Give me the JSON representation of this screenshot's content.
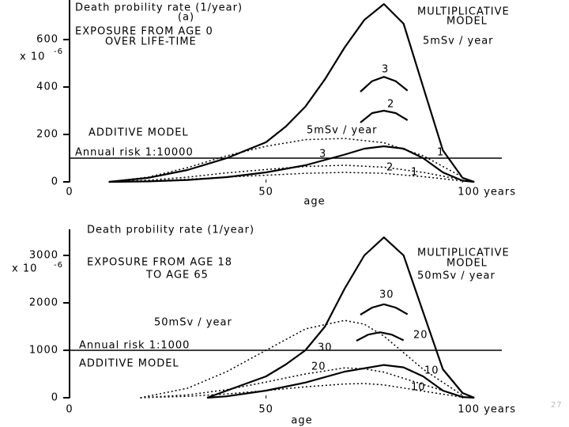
{
  "chart_data": [
    {
      "type": "line",
      "title": "Death probility rate (1/year)",
      "panel": "(a)",
      "y_unit": "x 10",
      "y_unit_exp": "-6",
      "x_label": "age",
      "xlim": [
        0,
        110
      ],
      "xticks": [
        0,
        50,
        {
          "value": 100,
          "label": "100 years"
        }
      ],
      "ylim": [
        0,
        767
      ],
      "yticks": [
        0,
        200,
        400,
        600
      ],
      "annotations": [
        "EXPOSURE FROM AGE 0",
        "OVER LIFE-TIME",
        "MULTIPLICATIVE",
        "MODEL",
        "5mSv / year",
        "ADDITIVE MODEL",
        "5mSv / year"
      ],
      "reference_lines": [
        {
          "value": 100,
          "label": "Annual risk 1:10000"
        }
      ],
      "series": [
        {
          "color": "#000000",
          "style": "solid",
          "x": [
            10,
            20,
            30,
            40,
            50,
            55,
            60,
            65,
            70,
            75,
            80,
            85,
            90,
            95,
            100,
            103
          ],
          "values": [
            0,
            17,
            50,
            100,
            167,
            233,
            317,
            433,
            567,
            683,
            750,
            667,
            400,
            133,
            17,
            0
          ]
        },
        {
          "name": "3",
          "color": "#000000",
          "style": "solid",
          "x": [
            74,
            77,
            80,
            83,
            86
          ],
          "values": [
            380,
            425,
            443,
            425,
            385
          ]
        },
        {
          "name": "2",
          "color": "#000000",
          "style": "solid",
          "x": [
            74,
            77,
            80,
            83,
            86
          ],
          "values": [
            250,
            290,
            300,
            290,
            260
          ]
        },
        {
          "name": "1",
          "color": "#000000",
          "style": "solid",
          "x": [
            10,
            20,
            30,
            40,
            50,
            60,
            70,
            75,
            80,
            85,
            90,
            95,
            100,
            103
          ],
          "values": [
            0,
            2,
            8,
            20,
            40,
            70,
            115,
            140,
            150,
            140,
            100,
            40,
            5,
            0
          ]
        },
        {
          "name": "3",
          "color": "#000000",
          "style": "dashed",
          "x": [
            10,
            20,
            30,
            40,
            50,
            60,
            70,
            80,
            90,
            100
          ],
          "values": [
            0,
            20,
            60,
            110,
            150,
            178,
            183,
            165,
            110,
            20
          ]
        },
        {
          "name": "2",
          "color": "#000000",
          "style": "dashed",
          "x": [
            10,
            20,
            30,
            40,
            50,
            60,
            70,
            80,
            90,
            100
          ],
          "values": [
            0,
            7,
            20,
            38,
            52,
            65,
            70,
            62,
            40,
            8
          ]
        },
        {
          "name": "1",
          "color": "#000000",
          "style": "dashed",
          "x": [
            10,
            20,
            30,
            40,
            50,
            60,
            70,
            80,
            90,
            100
          ],
          "values": [
            0,
            4,
            11,
            20,
            28,
            36,
            40,
            36,
            22,
            4
          ]
        }
      ]
    },
    {
      "type": "line",
      "title": "Death probility rate (1/year)",
      "panel": "(b)",
      "y_unit": "x 10",
      "y_unit_exp": "-6",
      "x_label": "age",
      "xlim": [
        0,
        110
      ],
      "xticks": [
        0,
        50,
        {
          "value": 100,
          "label": "100 years"
        }
      ],
      "ylim": [
        0,
        3550
      ],
      "yticks": [
        0,
        1000,
        2000,
        3000
      ],
      "annotations": [
        "EXPOSURE FROM AGE 18",
        "TO AGE 65",
        "MULTIPLICATIVE",
        "MODEL",
        "50mSv / year",
        "50mSv / year",
        "ADDITIVE MODEL"
      ],
      "reference_lines": [
        {
          "value": 1000,
          "label": "Annual risk 1:1000"
        }
      ],
      "series": [
        {
          "color": "#000000",
          "style": "solid",
          "x": [
            35,
            40,
            50,
            55,
            60,
            65,
            70,
            75,
            80,
            85,
            90,
            95,
            100,
            103
          ],
          "values": [
            0,
            150,
            450,
            700,
            1000,
            1500,
            2300,
            3000,
            3380,
            3000,
            1800,
            600,
            100,
            0
          ]
        },
        {
          "name": "30",
          "color": "#000000",
          "style": "solid",
          "x": [
            74,
            77,
            80,
            83,
            86
          ],
          "values": [
            1750,
            1900,
            1970,
            1900,
            1760
          ]
        },
        {
          "name": "20",
          "color": "#000000",
          "style": "solid",
          "x": [
            73,
            76,
            79,
            82,
            85
          ],
          "values": [
            1200,
            1330,
            1380,
            1330,
            1210
          ]
        },
        {
          "name": "10",
          "color": "#000000",
          "style": "solid",
          "x": [
            35,
            40,
            50,
            60,
            70,
            80,
            85,
            90,
            95,
            100,
            103
          ],
          "values": [
            0,
            30,
            150,
            320,
            550,
            690,
            640,
            450,
            150,
            15,
            0
          ]
        },
        {
          "name": "30",
          "color": "#000000",
          "style": "dashed",
          "x": [
            18,
            30,
            40,
            50,
            60,
            70,
            75,
            80,
            90,
            100
          ],
          "values": [
            0,
            200,
            550,
            1000,
            1450,
            1630,
            1550,
            1300,
            600,
            50
          ]
        },
        {
          "name": "20",
          "color": "#000000",
          "style": "dashed",
          "x": [
            18,
            30,
            40,
            50,
            60,
            70,
            75,
            80,
            90,
            100
          ],
          "values": [
            0,
            60,
            170,
            330,
            500,
            630,
            610,
            540,
            280,
            20
          ]
        },
        {
          "name": "10",
          "color": "#000000",
          "style": "dashed",
          "x": [
            18,
            30,
            40,
            50,
            60,
            70,
            75,
            80,
            90,
            100
          ],
          "values": [
            0,
            30,
            80,
            150,
            230,
            290,
            300,
            270,
            140,
            10
          ]
        }
      ]
    }
  ],
  "footer": {
    "page_number": "27"
  }
}
